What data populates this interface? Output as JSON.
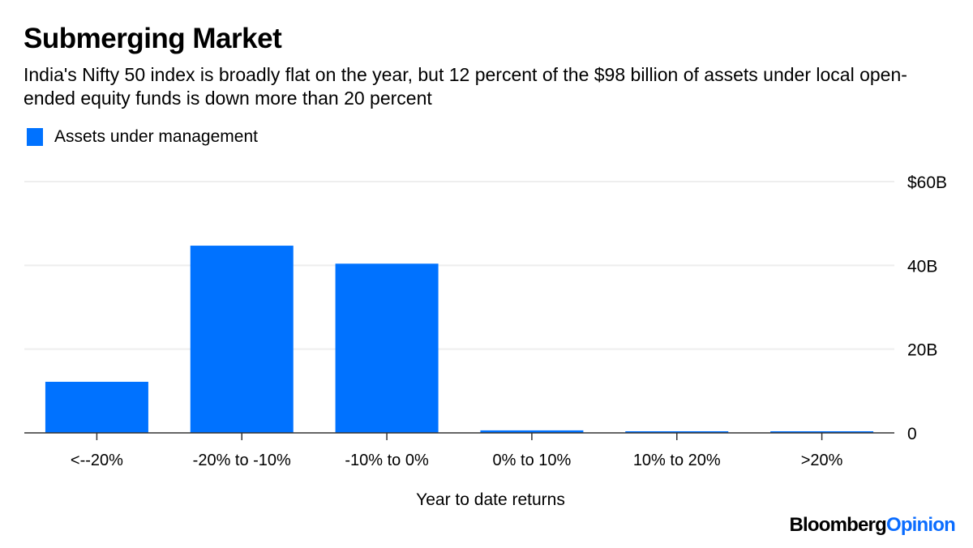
{
  "header": {
    "title": "Submerging Market",
    "subtitle": "India's Nifty 50 index is broadly flat on the year, but 12 percent of the $98 billion of assets under local open-ended equity funds is down more than 20 percent"
  },
  "legend": {
    "items": [
      {
        "label": "Assets under management",
        "color": "#0072ff"
      }
    ]
  },
  "footer": {
    "brand": "Bloomberg",
    "brand_suffix": "Opinion",
    "accent": "#0a6cff"
  },
  "chart_data": {
    "type": "bar",
    "title": "Submerging Market",
    "xlabel": "Year to date returns",
    "ylabel": "",
    "categories": [
      "<--20%",
      "-20% to -10%",
      "-10% to 0%",
      "0% to 10%",
      "10% to 20%",
      ">20%"
    ],
    "series": [
      {
        "name": "Assets under management",
        "unit": "billion USD",
        "color": "#0072ff",
        "values": [
          12.2,
          44.7,
          40.4,
          0.6,
          0.2,
          0.2
        ]
      }
    ],
    "ylim": [
      0,
      60
    ],
    "yticks": [
      0,
      20,
      40,
      60
    ],
    "ytick_labels": [
      "0",
      "20B",
      "40B",
      "$60B"
    ],
    "y_axis_side": "right",
    "grid": true,
    "legend_position": "top-left"
  }
}
